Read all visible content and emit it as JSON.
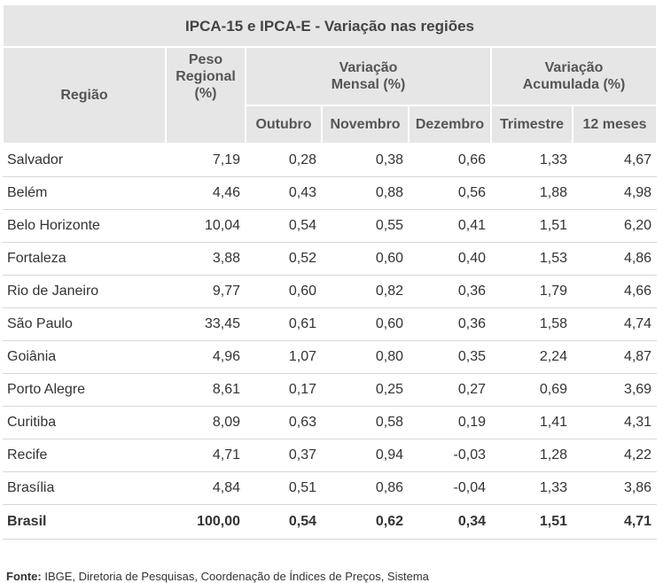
{
  "table": {
    "title": "IPCA-15 e IPCA-E - Variação nas regiões",
    "headers": {
      "regiao": "Região",
      "peso_line1": "Peso",
      "peso_line2": "Regional",
      "peso_line3": "(%)",
      "mensal_line1": "Variação",
      "mensal_line2": "Mensal (%)",
      "acumulada_line1": "Variação",
      "acumulada_line2": "Acumulada (%)",
      "outubro": "Outubro",
      "novembro": "Novembro",
      "dezembro": "Dezembro",
      "trimestre": "Trimestre",
      "doze_meses": "12 meses"
    },
    "rows": [
      {
        "regiao": "Salvador",
        "peso": "7,19",
        "outubro": "0,28",
        "novembro": "0,38",
        "dezembro": "0,66",
        "trimestre": "1,33",
        "doze_meses": "4,67"
      },
      {
        "regiao": "Belém",
        "peso": "4,46",
        "outubro": "0,43",
        "novembro": "0,88",
        "dezembro": "0,56",
        "trimestre": "1,88",
        "doze_meses": "4,98"
      },
      {
        "regiao": "Belo Horizonte",
        "peso": "10,04",
        "outubro": "0,54",
        "novembro": "0,55",
        "dezembro": "0,41",
        "trimestre": "1,51",
        "doze_meses": "6,20"
      },
      {
        "regiao": "Fortaleza",
        "peso": "3,88",
        "outubro": "0,52",
        "novembro": "0,60",
        "dezembro": "0,40",
        "trimestre": "1,53",
        "doze_meses": "4,86"
      },
      {
        "regiao": "Rio de Janeiro",
        "peso": "9,77",
        "outubro": "0,60",
        "novembro": "0,82",
        "dezembro": "0,36",
        "trimestre": "1,79",
        "doze_meses": "4,66"
      },
      {
        "regiao": "São Paulo",
        "peso": "33,45",
        "outubro": "0,61",
        "novembro": "0,60",
        "dezembro": "0,36",
        "trimestre": "1,58",
        "doze_meses": "4,74"
      },
      {
        "regiao": "Goiânia",
        "peso": "4,96",
        "outubro": "1,07",
        "novembro": "0,80",
        "dezembro": "0,35",
        "trimestre": "2,24",
        "doze_meses": "4,87"
      },
      {
        "regiao": "Porto Alegre",
        "peso": "8,61",
        "outubro": "0,17",
        "novembro": "0,25",
        "dezembro": "0,27",
        "trimestre": "0,69",
        "doze_meses": "3,69"
      },
      {
        "regiao": "Curitiba",
        "peso": "8,09",
        "outubro": "0,63",
        "novembro": "0,58",
        "dezembro": "0,19",
        "trimestre": "1,41",
        "doze_meses": "4,31"
      },
      {
        "regiao": "Recife",
        "peso": "4,71",
        "outubro": "0,37",
        "novembro": "0,94",
        "dezembro": "-0,03",
        "trimestre": "1,28",
        "doze_meses": "4,22"
      },
      {
        "regiao": "Brasília",
        "peso": "4,84",
        "outubro": "0,51",
        "novembro": "0,86",
        "dezembro": "-0,04",
        "trimestre": "1,33",
        "doze_meses": "3,86"
      }
    ],
    "total": {
      "regiao": "Brasil",
      "peso": "100,00",
      "outubro": "0,54",
      "novembro": "0,62",
      "dezembro": "0,34",
      "trimestre": "1,51",
      "doze_meses": "4,71"
    }
  },
  "source": {
    "label": "Fonte:",
    "text": " IBGE, Diretoria de Pesquisas, Coordenação de Índices de Preços, Sistema"
  },
  "colors": {
    "header_bg": "#e6e6e6",
    "row_divider": "#d7d7d7",
    "text": "#333333"
  }
}
